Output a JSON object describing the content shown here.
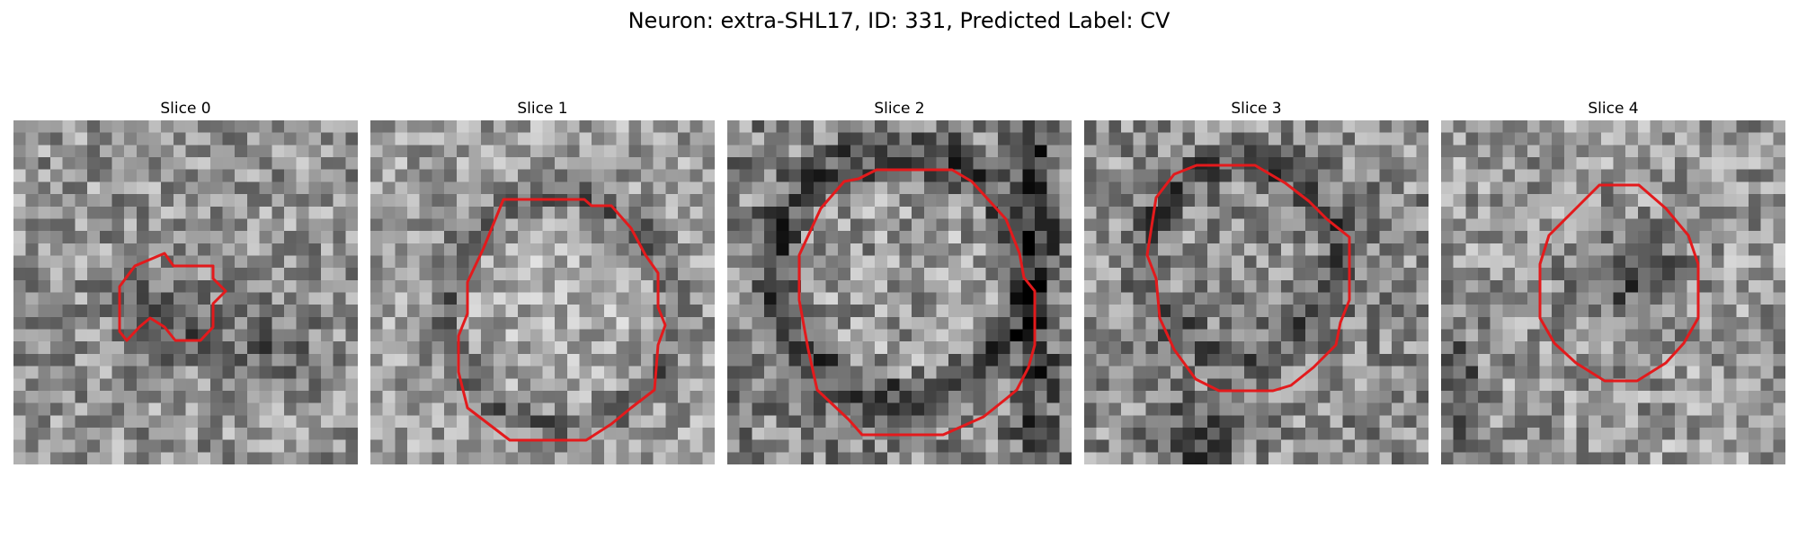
{
  "figure": {
    "title": "Neuron: extra-SHL17, ID: 331, Predicted Label: CV"
  },
  "colors": {
    "contour": "#e31a1c",
    "colormap": "gray"
  },
  "slices": [
    {
      "title": "Slice 0"
    },
    {
      "title": "Slice 1"
    },
    {
      "title": "Slice 2"
    },
    {
      "title": "Slice 3"
    },
    {
      "title": "Slice 4"
    }
  ]
}
